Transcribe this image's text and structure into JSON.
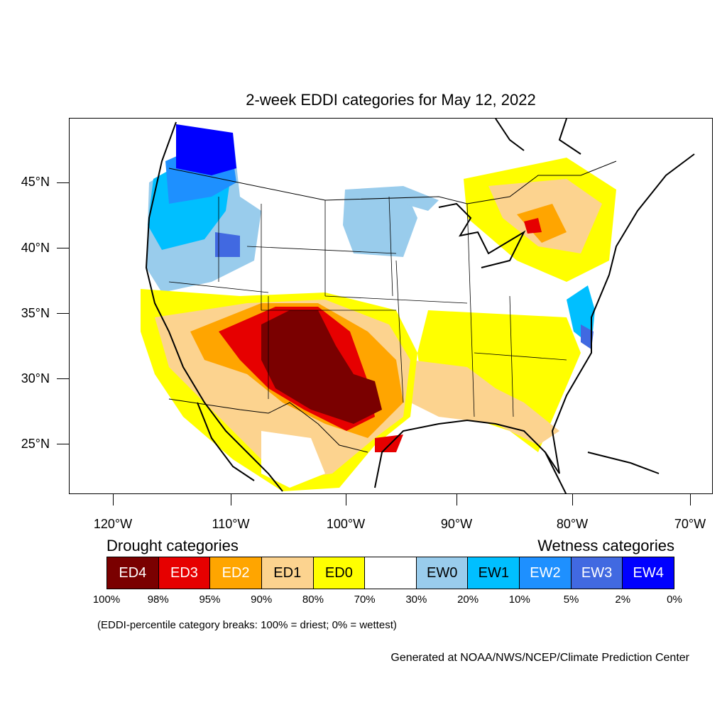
{
  "title": "2-week EDDI categories for May 12, 2022",
  "latitude_labels": [
    "45°N",
    "40°N",
    "35°N",
    "30°N",
    "25°N"
  ],
  "longitude_labels": [
    "120°W",
    "110°W",
    "100°W",
    "90°W",
    "80°W",
    "70°W"
  ],
  "legend": {
    "drought_heading": "Drought categories",
    "wetness_heading": "Wetness categories",
    "categories": [
      {
        "label": "ED4",
        "color": "#7a0000",
        "text_color": "#ffffff"
      },
      {
        "label": "ED3",
        "color": "#e60000",
        "text_color": "#ffffff"
      },
      {
        "label": "ED2",
        "color": "#ffa500",
        "text_color": "#ffffff"
      },
      {
        "label": "ED1",
        "color": "#fcd38f",
        "text_color": "#000000"
      },
      {
        "label": "ED0",
        "color": "#ffff00",
        "text_color": "#000000"
      },
      {
        "label": "",
        "color": "#ffffff",
        "text_color": "#000000"
      },
      {
        "label": "EW0",
        "color": "#99ccec",
        "text_color": "#000000"
      },
      {
        "label": "EW1",
        "color": "#00bfff",
        "text_color": "#000000"
      },
      {
        "label": "EW2",
        "color": "#1e90ff",
        "text_color": "#ffffff"
      },
      {
        "label": "EW3",
        "color": "#4169e1",
        "text_color": "#ffffff"
      },
      {
        "label": "EW4",
        "color": "#0000ff",
        "text_color": "#ffffff"
      }
    ],
    "breaks": [
      "100%",
      "98%",
      "95%",
      "90%",
      "80%",
      "70%",
      "30%",
      "20%",
      "10%",
      "5%",
      "2%",
      "0%"
    ]
  },
  "note": "(EDDI-percentile category breaks: 100% = driest; 0% = wettest)",
  "credit": "Generated at NOAA/NWS/NCEP/Climate Prediction Center"
}
